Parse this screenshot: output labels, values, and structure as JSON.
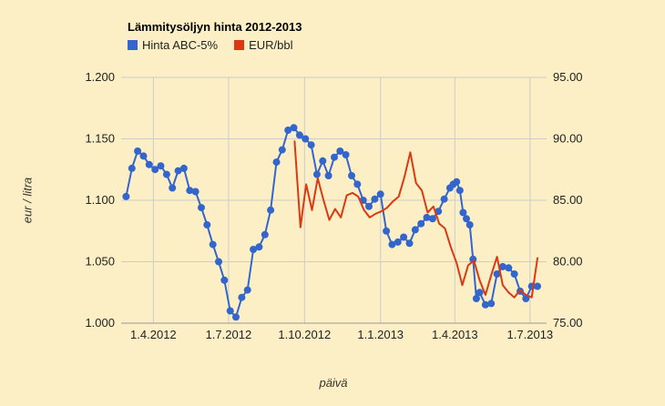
{
  "page": {
    "background": "#fcefc5"
  },
  "chart_data": {
    "type": "line",
    "title": "Lämmitysöljyn hinta 2012-2013",
    "xlabel": "päivä",
    "ylabel_left": "eur / litra",
    "grid": true,
    "legend_position": "top",
    "legend": [
      {
        "label": "Hinta ABC-5%",
        "color": "#3366CC"
      },
      {
        "label": "EUR/bbl",
        "color": "#DC3912"
      }
    ],
    "x_domain_days": [
      0,
      515
    ],
    "x_ticks": [
      {
        "day": 39,
        "label": "1.4.2012"
      },
      {
        "day": 130,
        "label": "1.7.2012"
      },
      {
        "day": 222,
        "label": "1.10.2012"
      },
      {
        "day": 314,
        "label": "1.1.2013"
      },
      {
        "day": 404,
        "label": "1.4.2013"
      },
      {
        "day": 495,
        "label": "1.7.2013"
      }
    ],
    "y_left": {
      "range": [
        1.0,
        1.2
      ],
      "ticks": [
        "1.000",
        "1.050",
        "1.100",
        "1.150",
        "1.200"
      ]
    },
    "y_right": {
      "range": [
        75,
        95
      ],
      "ticks": [
        "75.00",
        "80.00",
        "85.00",
        "90.00",
        "95.00"
      ]
    },
    "series": [
      {
        "name": "Hinta ABC-5%",
        "axis": "left",
        "unit": "eur/litra",
        "color": "#3366CC",
        "marker": true,
        "points": [
          [
            6,
            1.103
          ],
          [
            13,
            1.126
          ],
          [
            20,
            1.14
          ],
          [
            27,
            1.136
          ],
          [
            34,
            1.129
          ],
          [
            41,
            1.125
          ],
          [
            48,
            1.128
          ],
          [
            55,
            1.121
          ],
          [
            62,
            1.11
          ],
          [
            69,
            1.124
          ],
          [
            76,
            1.126
          ],
          [
            83,
            1.108
          ],
          [
            90,
            1.107
          ],
          [
            97,
            1.094
          ],
          [
            104,
            1.08
          ],
          [
            111,
            1.064
          ],
          [
            118,
            1.05
          ],
          [
            125,
            1.035
          ],
          [
            132,
            1.01
          ],
          [
            139,
            1.005
          ],
          [
            146,
            1.021
          ],
          [
            153,
            1.027
          ],
          [
            160,
            1.06
          ],
          [
            167,
            1.062
          ],
          [
            174,
            1.072
          ],
          [
            181,
            1.092
          ],
          [
            188,
            1.131
          ],
          [
            195,
            1.141
          ],
          [
            202,
            1.157
          ],
          [
            209,
            1.159
          ],
          [
            216,
            1.153
          ],
          [
            223,
            1.15
          ],
          [
            230,
            1.145
          ],
          [
            237,
            1.121
          ],
          [
            244,
            1.132
          ],
          [
            251,
            1.12
          ],
          [
            258,
            1.135
          ],
          [
            265,
            1.14
          ],
          [
            272,
            1.137
          ],
          [
            279,
            1.12
          ],
          [
            286,
            1.113
          ],
          [
            293,
            1.1
          ],
          [
            300,
            1.095
          ],
          [
            307,
            1.101
          ],
          [
            314,
            1.105
          ],
          [
            321,
            1.075
          ],
          [
            328,
            1.064
          ],
          [
            335,
            1.066
          ],
          [
            342,
            1.07
          ],
          [
            349,
            1.065
          ],
          [
            356,
            1.076
          ],
          [
            363,
            1.081
          ],
          [
            370,
            1.086
          ],
          [
            377,
            1.085
          ],
          [
            384,
            1.091
          ],
          [
            391,
            1.101
          ],
          [
            398,
            1.11
          ],
          [
            402,
            1.113
          ],
          [
            406,
            1.115
          ],
          [
            410,
            1.108
          ],
          [
            414,
            1.09
          ],
          [
            418,
            1.085
          ],
          [
            422,
            1.08
          ],
          [
            426,
            1.052
          ],
          [
            430,
            1.02
          ],
          [
            434,
            1.025
          ],
          [
            441,
            1.015
          ],
          [
            448,
            1.016
          ],
          [
            455,
            1.04
          ],
          [
            462,
            1.046
          ],
          [
            469,
            1.045
          ],
          [
            476,
            1.04
          ],
          [
            483,
            1.026
          ],
          [
            490,
            1.02
          ],
          [
            497,
            1.03
          ],
          [
            504,
            1.03
          ]
        ]
      },
      {
        "name": "EUR/bbl",
        "axis": "right",
        "unit": "EUR/bbl",
        "color": "#DC3912",
        "marker": false,
        "points": [
          [
            210,
            89.8
          ],
          [
            217,
            82.8
          ],
          [
            224,
            86.3
          ],
          [
            231,
            84.2
          ],
          [
            238,
            86.8
          ],
          [
            245,
            85.0
          ],
          [
            252,
            83.4
          ],
          [
            259,
            84.3
          ],
          [
            266,
            83.6
          ],
          [
            273,
            85.4
          ],
          [
            280,
            85.6
          ],
          [
            287,
            85.3
          ],
          [
            294,
            84.2
          ],
          [
            301,
            83.6
          ],
          [
            308,
            83.9
          ],
          [
            315,
            84.1
          ],
          [
            322,
            84.4
          ],
          [
            329,
            84.9
          ],
          [
            336,
            85.3
          ],
          [
            343,
            86.9
          ],
          [
            350,
            88.9
          ],
          [
            357,
            86.4
          ],
          [
            364,
            85.8
          ],
          [
            371,
            84.0
          ],
          [
            378,
            84.5
          ],
          [
            385,
            83.1
          ],
          [
            392,
            82.7
          ],
          [
            399,
            81.2
          ],
          [
            406,
            79.9
          ],
          [
            413,
            78.1
          ],
          [
            420,
            79.7
          ],
          [
            427,
            80.1
          ],
          [
            434,
            78.5
          ],
          [
            441,
            77.3
          ],
          [
            448,
            78.9
          ],
          [
            455,
            80.4
          ],
          [
            462,
            78.1
          ],
          [
            469,
            77.5
          ],
          [
            476,
            77.1
          ],
          [
            483,
            77.7
          ],
          [
            490,
            77.3
          ],
          [
            497,
            77.1
          ],
          [
            504,
            80.3
          ]
        ]
      }
    ]
  }
}
